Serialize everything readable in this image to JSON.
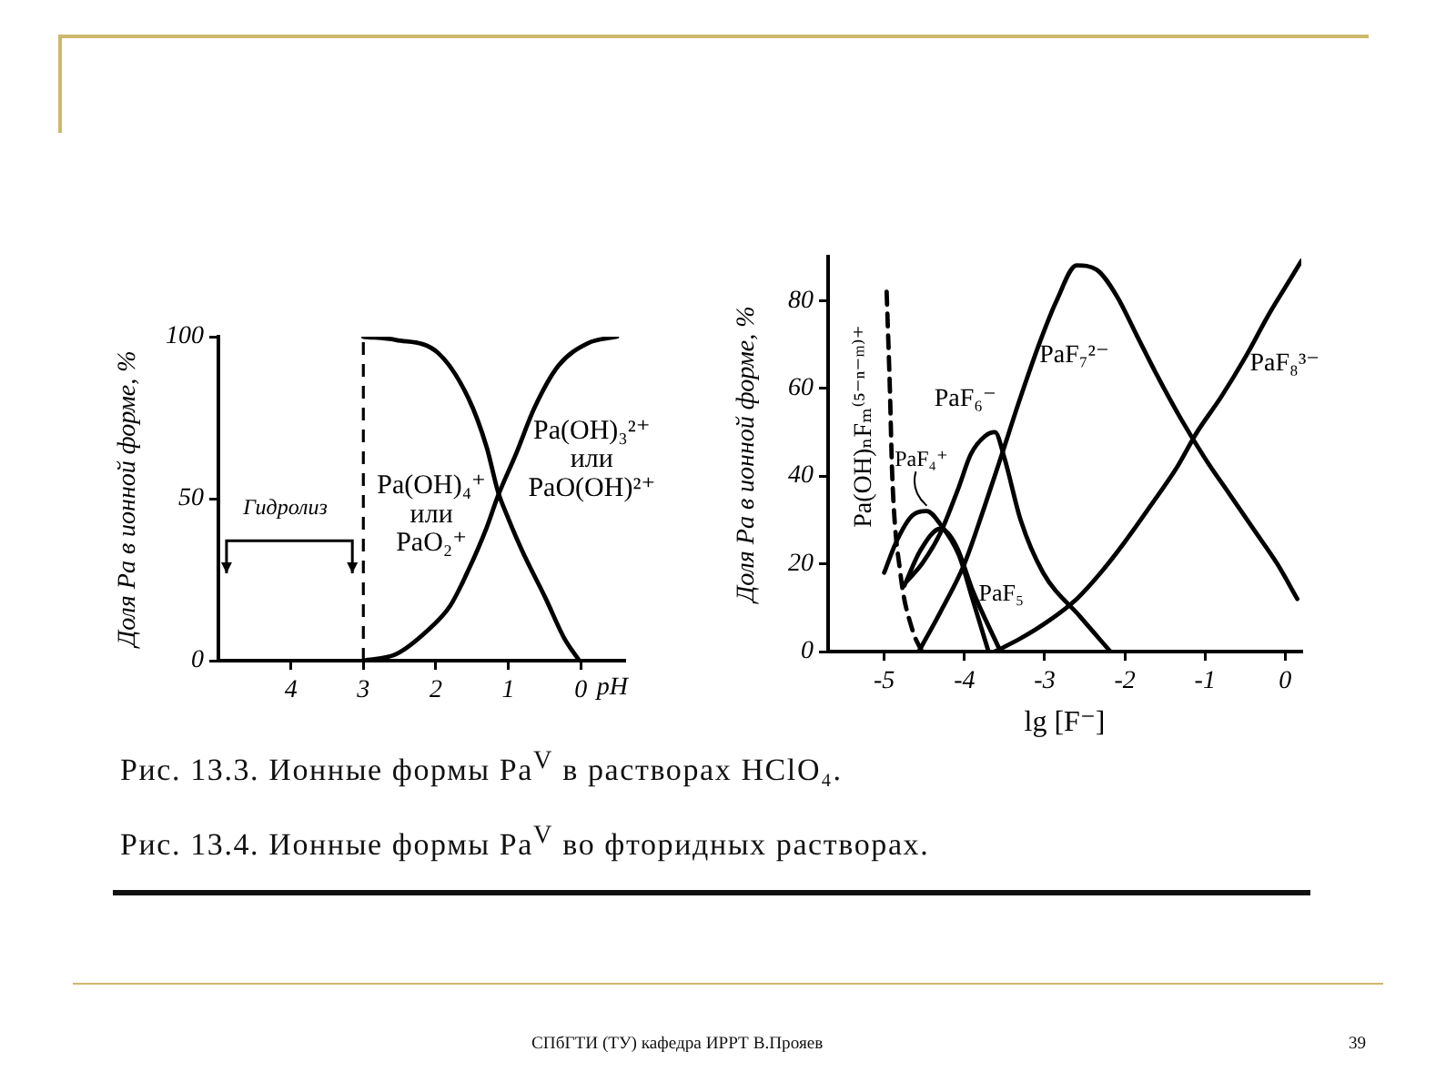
{
  "chart_data": [
    {
      "type": "line",
      "ylabel": "Доля Pa в ионной форме, %",
      "xlabel": "pH",
      "xlim": [
        5,
        -0.6
      ],
      "xticks": [
        4,
        3,
        2,
        1,
        0
      ],
      "ylim": [
        0,
        100
      ],
      "yticks": [
        0,
        50,
        100
      ],
      "series": [
        {
          "name": "Pa(OH)₄⁺ или PaO₂⁺",
          "color": "#000000",
          "x": [
            3,
            2.55,
            1.97,
            1.55,
            1.3,
            1.14,
            1.02,
            0.81,
            0.48,
            0.23,
            0.02
          ],
          "values": [
            100,
            99,
            95,
            81,
            66,
            52,
            45,
            34,
            19,
            7,
            0
          ]
        },
        {
          "name": "Pa(OH)₃²⁺ или PaO(OH)²⁺",
          "color": "#000000",
          "x": [
            3,
            2.55,
            2.13,
            1.8,
            1.55,
            1.3,
            1.14,
            0.89,
            0.64,
            0.31,
            -0.1,
            -0.5
          ],
          "values": [
            0,
            2,
            9,
            17,
            28,
            41,
            51,
            64,
            78,
            91,
            98,
            100
          ]
        }
      ],
      "ref_lines": [
        {
          "axis": "x",
          "value": 3,
          "line_style": "dashed",
          "color": "#000000"
        }
      ],
      "annotations": [
        "Гидролиз",
        "Рис. 13.3. Ионные формы Pa$^{V}$ в растворах HClO₄."
      ]
    },
    {
      "type": "line",
      "ylabel": "Доля Pa в ионной форме, %",
      "xlabel": "lg [F⁻]",
      "xlim": [
        -5.7,
        0.2
      ],
      "xticks": [
        -5,
        -4,
        -3,
        -2,
        -1,
        0
      ],
      "ylim": [
        0,
        90
      ],
      "yticks": [
        0,
        20,
        40,
        60,
        80
      ],
      "series": [
        {
          "name": "Pa(OH)ₙFₘ⁽⁵⁻ⁿ⁻ᵐ⁾⁺",
          "color": "#000000",
          "line_style": "dashed",
          "x": [
            -4.97,
            -4.93,
            -4.9,
            -4.8,
            -4.65,
            -4.53
          ],
          "values": [
            82,
            60,
            40,
            18,
            5,
            0
          ]
        },
        {
          "name": "PaF₄⁺",
          "color": "#000000",
          "x": [
            -5,
            -4.85,
            -4.65,
            -4.47,
            -4.3,
            -4.07,
            -3.9,
            -3.7
          ],
          "values": [
            18,
            25,
            31,
            32,
            29,
            22,
            12,
            0
          ]
        },
        {
          "name": "PaF₅",
          "color": "#000000",
          "x": [
            -4.75,
            -4.55,
            -4.3,
            -4.1,
            -3.9,
            -3.55
          ],
          "values": [
            15,
            23,
            28,
            24,
            14,
            0
          ]
        },
        {
          "name": "PaF₆⁻",
          "color": "#000000",
          "x": [
            -4.72,
            -4.53,
            -4.3,
            -4.08,
            -3.92,
            -3.75,
            -3.62,
            -3.5,
            -3.3,
            -3.02,
            -2.56,
            -2.18
          ],
          "values": [
            16,
            20,
            27,
            37,
            45,
            49,
            50,
            44,
            30,
            18,
            8,
            0
          ]
        },
        {
          "name": "PaF₇²⁻",
          "color": "#000000",
          "x": [
            -4.57,
            -4.3,
            -4,
            -3.75,
            -3.55,
            -3.3,
            -3.05,
            -2.85,
            -2.6,
            -2.35,
            -2.1,
            -1.85,
            -1.6,
            -1.3,
            -1,
            -0.7,
            -0.4,
            -0.1,
            0.15
          ],
          "values": [
            0,
            9,
            20,
            33,
            44,
            58,
            71,
            80,
            88,
            87,
            81,
            72,
            63,
            53,
            44,
            36,
            28,
            20,
            12
          ]
        },
        {
          "name": "PaF₈³⁻",
          "color": "#000000",
          "x": [
            -3.62,
            -3.3,
            -2.95,
            -2.6,
            -2.3,
            -2,
            -1.65,
            -1.35,
            -1.1,
            -0.8,
            -0.5,
            -0.2,
            0,
            0.2
          ],
          "values": [
            0,
            3,
            7,
            12,
            18,
            25,
            34,
            42,
            50,
            58,
            67,
            77,
            83,
            89
          ]
        }
      ],
      "annotations": [
        "Рис. 13.4. Ионные формы Pa$^{V}$ во фторидных растворах.",
        "СПбГТИ (ТУ) кафедра ИРРТ В.Прояев",
        "39"
      ]
    }
  ]
}
